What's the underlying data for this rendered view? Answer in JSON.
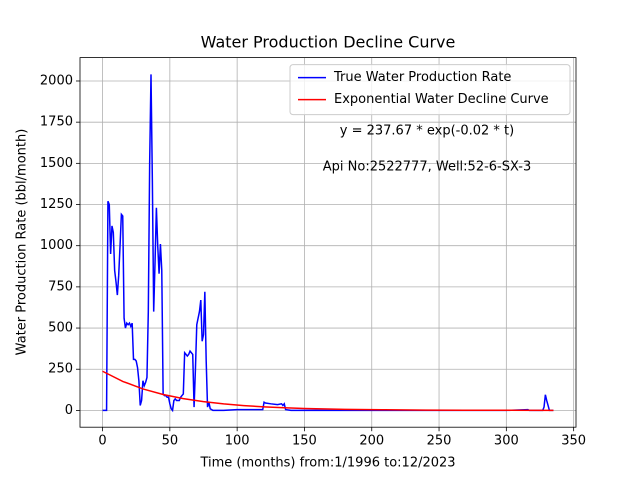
{
  "chart_data": {
    "type": "line",
    "title": "Water Production Decline Curve",
    "xlabel": "Time (months) from:1/1996 to:12/2023",
    "ylabel": "Water Production Rate (bbl/month)",
    "annotations": [
      "y = 237.67 * exp(-0.02 * t)",
      "Api No:2522777, Well:52-6-SX-3"
    ],
    "xlim": [
      -16.75,
      351.75
    ],
    "ylim": [
      -102,
      2142
    ],
    "xticks": [
      0,
      50,
      100,
      150,
      200,
      250,
      300,
      350
    ],
    "yticks": [
      0,
      250,
      500,
      750,
      1000,
      1250,
      1500,
      1750,
      2000
    ],
    "grid": true,
    "legend": "upper right",
    "series": [
      {
        "name": "True Water Production Rate",
        "color": "#0000ff",
        "x": [
          0,
          3,
          4,
          5,
          6,
          7,
          8,
          9,
          10,
          11,
          12,
          13,
          14,
          15,
          16,
          17,
          18,
          19,
          20,
          21,
          22,
          23,
          24,
          25,
          26,
          27,
          28,
          29,
          30,
          31,
          32,
          33,
          34,
          35,
          36,
          37,
          38,
          39,
          40,
          41,
          42,
          43,
          44,
          45,
          46,
          47,
          48,
          49,
          50,
          51,
          52,
          53,
          54,
          55,
          56,
          57,
          58,
          59,
          60,
          61,
          62,
          63,
          64,
          65,
          66,
          67,
          68,
          69,
          70,
          71,
          72,
          73,
          74,
          75,
          76,
          77,
          78,
          79,
          80,
          82,
          90,
          100,
          110,
          119,
          120,
          121,
          125,
          130,
          133,
          134,
          135,
          136,
          140,
          200,
          300,
          316,
          317,
          327,
          328,
          329,
          330,
          331,
          332,
          335
        ],
        "values": [
          0,
          0,
          1270,
          1250,
          950,
          1120,
          1080,
          850,
          780,
          700,
          820,
          1000,
          1190,
          1180,
          560,
          500,
          530,
          520,
          530,
          510,
          530,
          310,
          310,
          300,
          260,
          180,
          30,
          60,
          180,
          150,
          170,
          200,
          600,
          1500,
          2040,
          1400,
          600,
          900,
          1230,
          1000,
          830,
          1010,
          850,
          100,
          90,
          90,
          80,
          80,
          40,
          10,
          0,
          60,
          70,
          60,
          60,
          60,
          80,
          90,
          100,
          350,
          340,
          330,
          340,
          360,
          350,
          340,
          20,
          250,
          520,
          560,
          600,
          670,
          420,
          460,
          720,
          300,
          20,
          50,
          10,
          0,
          0,
          5,
          5,
          5,
          50,
          45,
          40,
          35,
          40,
          30,
          40,
          5,
          0,
          0,
          0,
          5,
          0,
          0,
          20,
          95,
          60,
          30,
          0,
          0
        ]
      },
      {
        "name": "Exponential Water Decline Curve",
        "color": "#ff0000",
        "x": [
          0,
          15,
          30,
          45,
          60,
          75,
          90,
          105,
          120,
          135,
          150,
          180,
          210,
          240,
          270,
          300,
          335
        ],
        "values": [
          237.67,
          176.07,
          130.43,
          96.63,
          71.59,
          53.03,
          39.29,
          29.11,
          21.56,
          15.97,
          11.83,
          6.49,
          3.56,
          1.96,
          1.07,
          0.59,
          0.29
        ]
      }
    ]
  }
}
